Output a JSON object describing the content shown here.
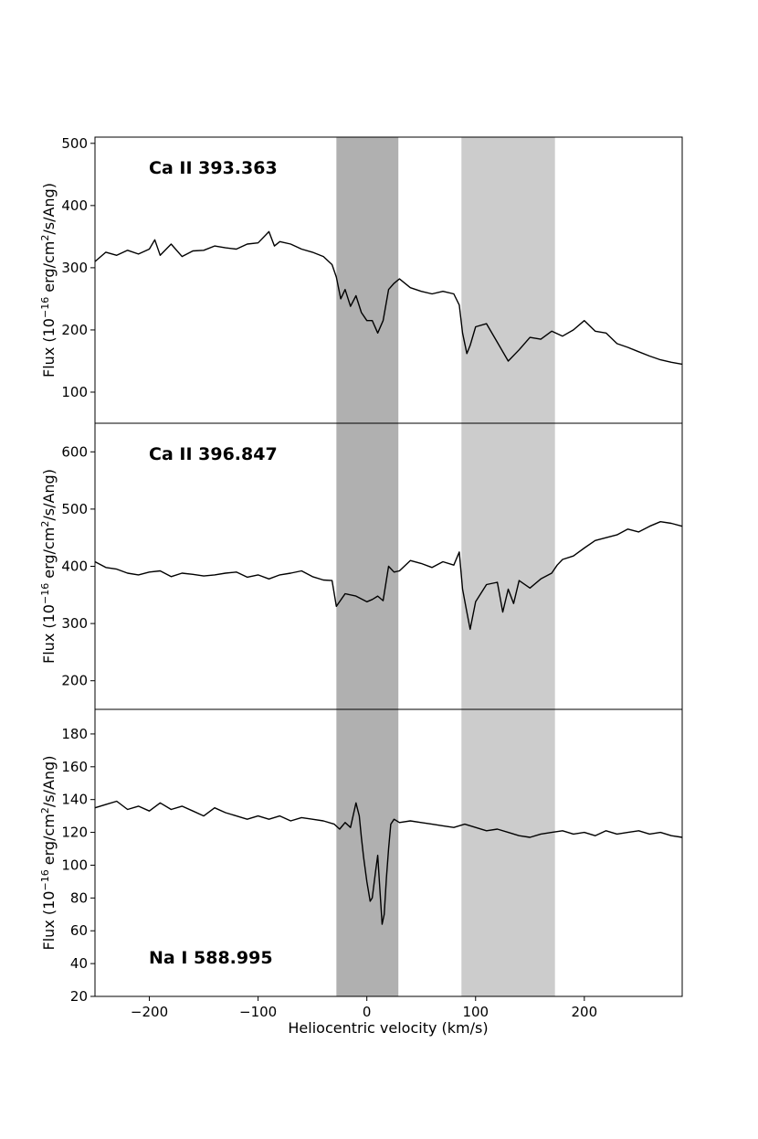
{
  "chart_data": {
    "type": "line",
    "xlabel": "Heliocentric velocity (km/s)",
    "xlim": [
      -250,
      290
    ],
    "xticks": [
      -200,
      -100,
      0,
      100,
      200
    ],
    "xtick_labels": [
      "−200",
      "−100",
      "0",
      "100",
      "200"
    ],
    "shaded_regions": [
      {
        "x0": -28,
        "x1": 29,
        "color": "#b0b0b0"
      },
      {
        "x0": 87,
        "x1": 173,
        "color": "#cccccc"
      }
    ],
    "panels": [
      {
        "name": "Ca II 393.363",
        "title_position": "top-left",
        "ylabel_parts": [
          "Flux (10",
          "−16",
          " erg/cm",
          "2",
          "/s/Ang)"
        ],
        "ylim": [
          50,
          510
        ],
        "yticks": [
          100,
          200,
          300,
          400,
          500
        ],
        "series": [
          {
            "x": [
              -250,
              -240,
              -230,
              -220,
              -210,
              -200,
              -195,
              -190,
              -180,
              -170,
              -160,
              -150,
              -140,
              -130,
              -120,
              -110,
              -100,
              -90,
              -85,
              -80,
              -70,
              -60,
              -50,
              -40,
              -32,
              -28,
              -24,
              -20,
              -15,
              -10,
              -5,
              0,
              5,
              10,
              15,
              20,
              25,
              30,
              40,
              50,
              60,
              70,
              80,
              85,
              88,
              92,
              95,
              100,
              110,
              120,
              130,
              140,
              150,
              160,
              170,
              180,
              190,
              200,
              210,
              220,
              230,
              240,
              250,
              260,
              270,
              280,
              290
            ],
            "y": [
              310,
              325,
              320,
              328,
              322,
              330,
              345,
              320,
              338,
              318,
              327,
              328,
              335,
              332,
              330,
              338,
              340,
              358,
              335,
              342,
              338,
              330,
              325,
              318,
              305,
              285,
              250,
              265,
              238,
              255,
              228,
              215,
              215,
              195,
              215,
              265,
              275,
              282,
              268,
              262,
              258,
              262,
              258,
              240,
              195,
              162,
              175,
              205,
              210,
              180,
              150,
              168,
              188,
              185,
              198,
              190,
              200,
              215,
              198,
              195,
              178,
              172,
              165,
              158,
              152,
              148,
              145
            ]
          }
        ]
      },
      {
        "name": "Ca II 396.847",
        "title_position": "top-left",
        "ylabel_parts": [
          "Flux (10",
          "−16",
          " erg/cm",
          "2",
          "/s/Ang)"
        ],
        "ylim": [
          150,
          650
        ],
        "yticks": [
          200,
          300,
          400,
          500,
          600
        ],
        "series": [
          {
            "x": [
              -250,
              -240,
              -230,
              -220,
              -210,
              -200,
              -190,
              -180,
              -170,
              -160,
              -150,
              -140,
              -130,
              -120,
              -110,
              -100,
              -90,
              -80,
              -70,
              -60,
              -50,
              -40,
              -32,
              -28,
              -20,
              -10,
              0,
              5,
              10,
              15,
              20,
              25,
              30,
              40,
              50,
              60,
              70,
              80,
              85,
              88,
              92,
              95,
              100,
              110,
              120,
              125,
              130,
              135,
              140,
              150,
              160,
              170,
              175,
              180,
              190,
              200,
              210,
              220,
              230,
              240,
              250,
              260,
              270,
              280,
              290
            ],
            "y": [
              408,
              398,
              395,
              388,
              385,
              390,
              392,
              382,
              388,
              386,
              383,
              385,
              388,
              390,
              381,
              385,
              378,
              385,
              388,
              392,
              382,
              376,
              375,
              330,
              352,
              348,
              338,
              342,
              348,
              340,
              400,
              390,
              392,
              410,
              405,
              398,
              408,
              402,
              425,
              360,
              320,
              290,
              338,
              368,
              372,
              320,
              360,
              335,
              375,
              362,
              378,
              388,
              402,
              412,
              418,
              432,
              445,
              450,
              455,
              465,
              460,
              470,
              478,
              475,
              470
            ]
          }
        ]
      },
      {
        "name": "Na I 588.995",
        "title_position": "bottom-left",
        "ylabel_parts": [
          "Flux (10",
          "−16",
          " erg/cm",
          "2",
          "/s/Ang)"
        ],
        "ylim": [
          20,
          195
        ],
        "yticks": [
          20,
          40,
          60,
          80,
          100,
          120,
          140,
          160,
          180
        ],
        "series": [
          {
            "x": [
              -250,
              -240,
              -230,
              -220,
              -210,
              -200,
              -190,
              -180,
              -170,
              -160,
              -150,
              -140,
              -130,
              -120,
              -110,
              -100,
              -90,
              -80,
              -70,
              -60,
              -50,
              -40,
              -30,
              -25,
              -20,
              -15,
              -10,
              -7,
              -5,
              -3,
              0,
              3,
              5,
              8,
              10,
              12,
              14,
              16,
              18,
              20,
              22,
              25,
              30,
              40,
              50,
              60,
              70,
              80,
              90,
              100,
              110,
              120,
              130,
              140,
              150,
              160,
              170,
              180,
              190,
              200,
              210,
              220,
              230,
              240,
              250,
              260,
              270,
              280,
              290
            ],
            "y": [
              135,
              137,
              139,
              134,
              136,
              133,
              138,
              134,
              136,
              133,
              130,
              135,
              132,
              130,
              128,
              130,
              128,
              130,
              127,
              129,
              128,
              127,
              125,
              122,
              126,
              123,
              138,
              130,
              117,
              105,
              90,
              78,
              80,
              96,
              106,
              85,
              64,
              70,
              92,
              110,
              125,
              128,
              126,
              127,
              126,
              125,
              124,
              123,
              125,
              123,
              121,
              122,
              120,
              118,
              117,
              119,
              120,
              121,
              119,
              120,
              118,
              121,
              119,
              120,
              121,
              119,
              120,
              118,
              117
            ]
          }
        ]
      }
    ]
  }
}
